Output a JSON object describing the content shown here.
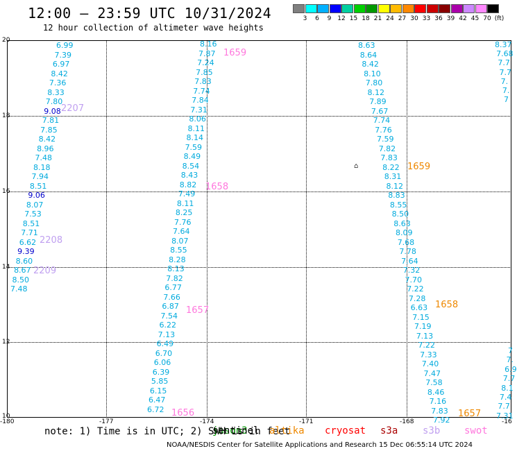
{
  "header": {
    "title": "12:00 – 23:59 UTC 10/31/2024",
    "subtitle": "12 hour collection of altimeter wave heights"
  },
  "legend": {
    "colors": [
      "#808080",
      "#00ffff",
      "#00b0ff",
      "#0000ff",
      "#00d0a0",
      "#00d000",
      "#009900",
      "#ffff00",
      "#ffbb00",
      "#ff8800",
      "#ff0000",
      "#cc0000",
      "#880000",
      "#aa00aa",
      "#cc88ff",
      "#ff88ff",
      "#000000"
    ],
    "labels": [
      "3",
      "6",
      "9",
      "12",
      "15",
      "18",
      "21",
      "24",
      "27",
      "30",
      "33",
      "36",
      "39",
      "42",
      "45",
      "70",
      "(ft)"
    ]
  },
  "axes": {
    "lat_ticks": [
      "20",
      "18",
      "16",
      "14",
      "12",
      "10"
    ],
    "lon_ticks": [
      "-180",
      "-177",
      "-174",
      "-171",
      "-168",
      "-16"
    ]
  },
  "tracks": [
    {
      "values": [
        [
          "6.99",
          0
        ],
        [
          "7.39",
          0
        ],
        [
          "6.97",
          0
        ],
        [
          "8.42",
          0
        ],
        [
          "7.36",
          0
        ],
        [
          "8.33",
          0
        ],
        [
          "7.80",
          0
        ],
        [
          "9.08",
          1
        ],
        [
          "7.81",
          0
        ],
        [
          "7.85",
          0
        ],
        [
          "8.42",
          0
        ],
        [
          "8.96",
          0
        ],
        [
          "7.48",
          0
        ],
        [
          "8.18",
          0
        ],
        [
          "7.94",
          0
        ],
        [
          "8.51",
          0
        ],
        [
          "9.06",
          1
        ],
        [
          "8.07",
          0
        ],
        [
          "7.53",
          0
        ],
        [
          "8.51",
          0
        ],
        [
          "7.71",
          0
        ],
        [
          "6.62",
          0
        ],
        [
          "9.39",
          1
        ],
        [
          "8.60",
          0
        ],
        [
          "8.67",
          0
        ],
        [
          "8.50",
          0
        ],
        [
          "7.48",
          0
        ]
      ]
    },
    {
      "values": [
        [
          "8.16",
          0
        ],
        [
          "7.87",
          0
        ],
        [
          "7.24",
          0
        ],
        [
          "7.85",
          0
        ],
        [
          "7.83",
          0
        ],
        [
          "7.74",
          0
        ],
        [
          "7.84",
          0
        ],
        [
          "7.31",
          0
        ],
        [
          "8.06",
          0
        ],
        [
          "8.11",
          0
        ],
        [
          "8.14",
          0
        ],
        [
          "7.59",
          0
        ],
        [
          "8.49",
          0
        ],
        [
          "8.54",
          0
        ],
        [
          "8.43",
          0
        ],
        [
          "8.82",
          0
        ],
        [
          "7.49",
          0
        ],
        [
          "8.11",
          0
        ],
        [
          "8.25",
          0
        ],
        [
          "7.76",
          0
        ],
        [
          "7.64",
          0
        ],
        [
          "8.07",
          0
        ],
        [
          "8.55",
          0
        ],
        [
          "8.28",
          0
        ],
        [
          "8.13",
          0
        ],
        [
          "7.82",
          0
        ],
        [
          "6.77",
          0
        ],
        [
          "7.66",
          0
        ],
        [
          "6.87",
          0
        ],
        [
          "7.54",
          0
        ],
        [
          "6.22",
          0
        ],
        [
          "7.13",
          0
        ],
        [
          "6.49",
          0
        ],
        [
          "6.70",
          0
        ],
        [
          "6.06",
          0
        ],
        [
          "6.39",
          0
        ],
        [
          "5.85",
          0
        ],
        [
          "6.15",
          0
        ],
        [
          "6.47",
          0
        ],
        [
          "6.72",
          0
        ]
      ]
    },
    {
      "values": [
        [
          "8.63",
          0
        ],
        [
          "8.64",
          0
        ],
        [
          "8.42",
          0
        ],
        [
          "8.10",
          0
        ],
        [
          "7.80",
          0
        ],
        [
          "8.12",
          0
        ],
        [
          "7.89",
          0
        ],
        [
          "7.67",
          0
        ],
        [
          "7.74",
          0
        ],
        [
          "7.76",
          0
        ],
        [
          "7.59",
          0
        ],
        [
          "7.82",
          0
        ],
        [
          "7.83",
          0
        ],
        [
          "8.22",
          0
        ],
        [
          "8.31",
          0
        ],
        [
          "8.12",
          0
        ],
        [
          "8.83",
          0
        ],
        [
          "8.55",
          0
        ],
        [
          "8.50",
          0
        ],
        [
          "8.63",
          0
        ],
        [
          "8.09",
          0
        ],
        [
          "7.68",
          0
        ],
        [
          "7.78",
          0
        ],
        [
          "7.64",
          0
        ],
        [
          "7.32",
          0
        ],
        [
          "7.70",
          0
        ],
        [
          "7.22",
          0
        ],
        [
          "7.28",
          0
        ],
        [
          "6.63",
          0
        ],
        [
          "7.15",
          0
        ],
        [
          "7.19",
          0
        ],
        [
          "7.13",
          0
        ],
        [
          "7.22",
          0
        ],
        [
          "7.33",
          0
        ],
        [
          "7.40",
          0
        ],
        [
          "7.47",
          0
        ],
        [
          "7.58",
          0
        ],
        [
          "8.46",
          0
        ],
        [
          "7.16",
          0
        ],
        [
          "7.83",
          0
        ],
        [
          "7.92",
          0
        ]
      ]
    },
    {
      "values": [
        [
          "8.37",
          0
        ],
        [
          "7.68",
          0
        ],
        [
          "7.7",
          0
        ],
        [
          "7.7",
          0
        ],
        [
          "7.",
          0
        ],
        [
          "7.",
          0
        ],
        [
          "7",
          0
        ]
      ]
    },
    {
      "values": [
        [
          "7",
          0
        ],
        [
          "7.",
          0
        ],
        [
          "6.9",
          0
        ],
        [
          "7.7",
          0
        ],
        [
          "8.1",
          0
        ],
        [
          "7.4",
          0
        ],
        [
          "7.7",
          0
        ],
        [
          "7.31",
          0
        ]
      ]
    }
  ],
  "time_labels": [
    {
      "text": "2207",
      "color": "#c0a0f0"
    },
    {
      "text": "2208",
      "color": "#c0a0f0"
    },
    {
      "text": "2209",
      "color": "#c0a0f0"
    },
    {
      "text": "1659",
      "color": "#ff77dd"
    },
    {
      "text": "1658",
      "color": "#ff77dd"
    },
    {
      "text": "1657",
      "color": "#ff77dd"
    },
    {
      "text": "1656",
      "color": "#ff77dd"
    },
    {
      "text": "1659",
      "color": "#ee8800"
    },
    {
      "text": "1658",
      "color": "#ee8800"
    },
    {
      "text": "1657",
      "color": "#ee8800"
    }
  ],
  "boat_symbol": "⌂",
  "satellites": [
    {
      "name": "jason3",
      "color": "#009900"
    },
    {
      "name": "sentinel",
      "color": "#000000"
    },
    {
      "name": "altika",
      "color": "#ee8800"
    },
    {
      "name": "cryosat",
      "color": "#ff0000"
    },
    {
      "name": "s3a",
      "color": "#aa0000"
    },
    {
      "name": "s3b",
      "color": "#c0a0f0"
    },
    {
      "name": "swot",
      "color": "#ff77dd"
    }
  ],
  "note": "note: 1) Time is in UTC; 2) SWH is in feet",
  "footer": "NOAA/NESDIS Center for Satellite Applications and Research   15 Dec 06:55:14 UTC 2024",
  "colors": {
    "normal": "#00aadd",
    "high": "#0000cc"
  }
}
